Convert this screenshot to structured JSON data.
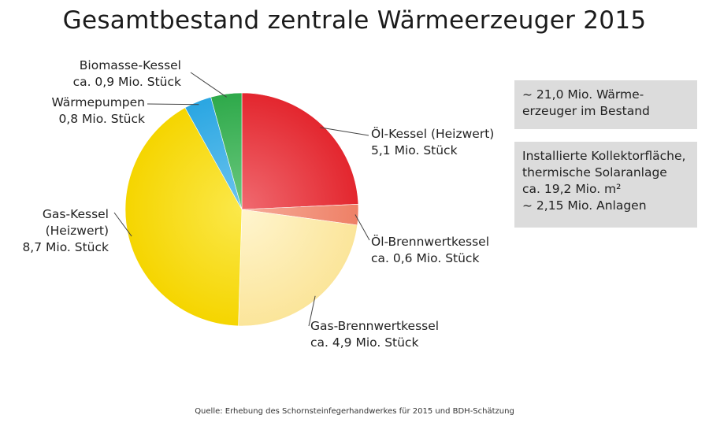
{
  "chart_data": {
    "type": "pie",
    "title": "Gesamtbestand zentrale Wärmeerzeuger 2015",
    "unit": "Mio. Stück",
    "slices": [
      {
        "name_lines": [
          "Öl-Kessel (Heizwert)"
        ],
        "value_text": "5,1 Mio. Stück",
        "value": 5.1,
        "color": "#e3262e",
        "color_light": "#f06a70"
      },
      {
        "name_lines": [
          "Öl-Brennwertkessel"
        ],
        "value_text": "ca. 0,6 Mio. Stück",
        "value": 0.6,
        "color": "#ee8066",
        "color_light": "#f6ab99"
      },
      {
        "name_lines": [
          "Gas-Brennwertkessel"
        ],
        "value_text": "ca. 4,9 Mio. Stück",
        "value": 4.9,
        "color": "#fbe59a",
        "color_light": "#fff5cf"
      },
      {
        "name_lines": [
          "Gas-Kessel",
          "(Heizwert)"
        ],
        "value_text": "8,7 Mio. Stück",
        "value": 8.7,
        "color": "#f5d500",
        "color_light": "#fbe84a"
      },
      {
        "name_lines": [
          "Wärmepumpen"
        ],
        "value_text": "0,8 Mio. Stück",
        "value": 0.8,
        "color": "#2aa6e2",
        "color_light": "#6cc4ee"
      },
      {
        "name_lines": [
          "Biomasse-Kessel"
        ],
        "value_text": "ca. 0,9 Mio. Stück",
        "value": 0.9,
        "color": "#2ea94a",
        "color_light": "#6cc97f"
      }
    ]
  },
  "info_boxes": [
    {
      "lines": [
        "~ 21,0 Mio. Wärme-",
        "erzeuger im Bestand"
      ]
    },
    {
      "lines": [
        "Installierte Kollektorfläche,",
        "thermische Solaranlage",
        "ca. 19,2 Mio. m²",
        "~ 2,15 Mio. Anlagen"
      ]
    }
  ],
  "source": "Quelle: Erhebung des Schornsteinfegerhandwerkes für 2015 und BDH-Schätzung"
}
